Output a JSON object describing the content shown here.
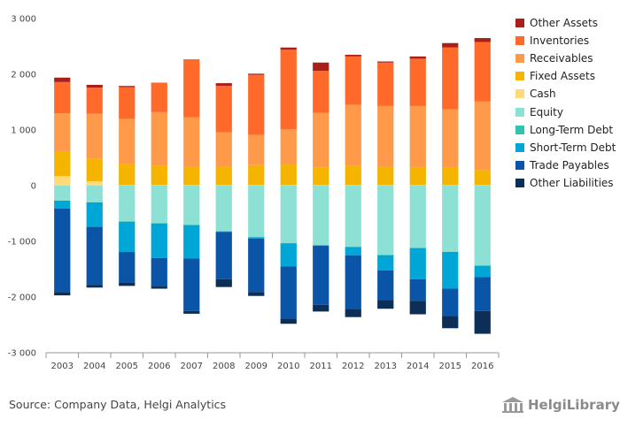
{
  "source": "Source: Company Data, Helgi Analytics",
  "logo": {
    "name": "HelgiLibrary",
    "icon": "building-icon"
  },
  "chart_data": {
    "type": "bar",
    "stacked": true,
    "categories": [
      "2003",
      "2004",
      "2005",
      "2006",
      "2007",
      "2008",
      "2009",
      "2010",
      "2011",
      "2012",
      "2013",
      "2014",
      "2015",
      "2016"
    ],
    "y_ticks": [
      "3 000",
      "2 000",
      "1 000",
      "0",
      "-1 000",
      "-2 000",
      "-3 000"
    ],
    "ylim": [
      -3000,
      3000
    ],
    "grid": false,
    "legend_position": "right",
    "series": [
      {
        "name": "Other Assets",
        "color": "#a8201a",
        "side": "asset",
        "values": [
          80,
          50,
          20,
          0,
          0,
          50,
          20,
          40,
          150,
          30,
          20,
          40,
          80,
          70
        ]
      },
      {
        "name": "Inventories",
        "color": "#ff6a2a",
        "side": "asset",
        "values": [
          560,
          470,
          570,
          530,
          1040,
          830,
          1080,
          1430,
          750,
          870,
          780,
          850,
          1110,
          1070
        ]
      },
      {
        "name": "Receivables",
        "color": "#ff9a4a",
        "side": "asset",
        "values": [
          690,
          810,
          810,
          960,
          890,
          620,
          540,
          630,
          980,
          1090,
          1090,
          1110,
          1050,
          1230
        ]
      },
      {
        "name": "Fixed Assets",
        "color": "#f4b400",
        "side": "asset",
        "values": [
          440,
          400,
          380,
          350,
          330,
          330,
          360,
          370,
          320,
          350,
          330,
          310,
          310,
          270
        ]
      },
      {
        "name": "Cash",
        "color": "#ffd97a",
        "side": "asset",
        "values": [
          170,
          80,
          10,
          10,
          10,
          10,
          10,
          10,
          10,
          10,
          10,
          10,
          10,
          10
        ]
      },
      {
        "name": "Equity",
        "color": "#8de0d4",
        "side": "liab",
        "values": [
          -270,
          -300,
          -640,
          -670,
          -700,
          -820,
          -920,
          -1030,
          -1070,
          -1100,
          -1240,
          -1120,
          -1190,
          -1430
        ]
      },
      {
        "name": "Long-Term Debt",
        "color": "#2ec4b0",
        "side": "liab",
        "values": [
          0,
          0,
          -10,
          -10,
          -10,
          0,
          -10,
          -10,
          0,
          0,
          -10,
          0,
          0,
          -10
        ]
      },
      {
        "name": "Short-Term Debt",
        "color": "#00a6d6",
        "side": "liab",
        "values": [
          -140,
          -440,
          -540,
          -620,
          -600,
          -10,
          -20,
          -410,
          -10,
          -150,
          -270,
          -560,
          -660,
          -200
        ]
      },
      {
        "name": "Trade Payables",
        "color": "#0a55a8",
        "side": "liab",
        "values": [
          -1500,
          -1040,
          -550,
          -510,
          -940,
          -850,
          -960,
          -940,
          -1060,
          -960,
          -530,
          -390,
          -490,
          -610
        ]
      },
      {
        "name": "Other Liabilities",
        "color": "#0d2e57",
        "side": "liab",
        "values": [
          -60,
          -50,
          -60,
          -40,
          -50,
          -140,
          -70,
          -90,
          -120,
          -150,
          -160,
          -240,
          -220,
          -410
        ]
      }
    ]
  }
}
